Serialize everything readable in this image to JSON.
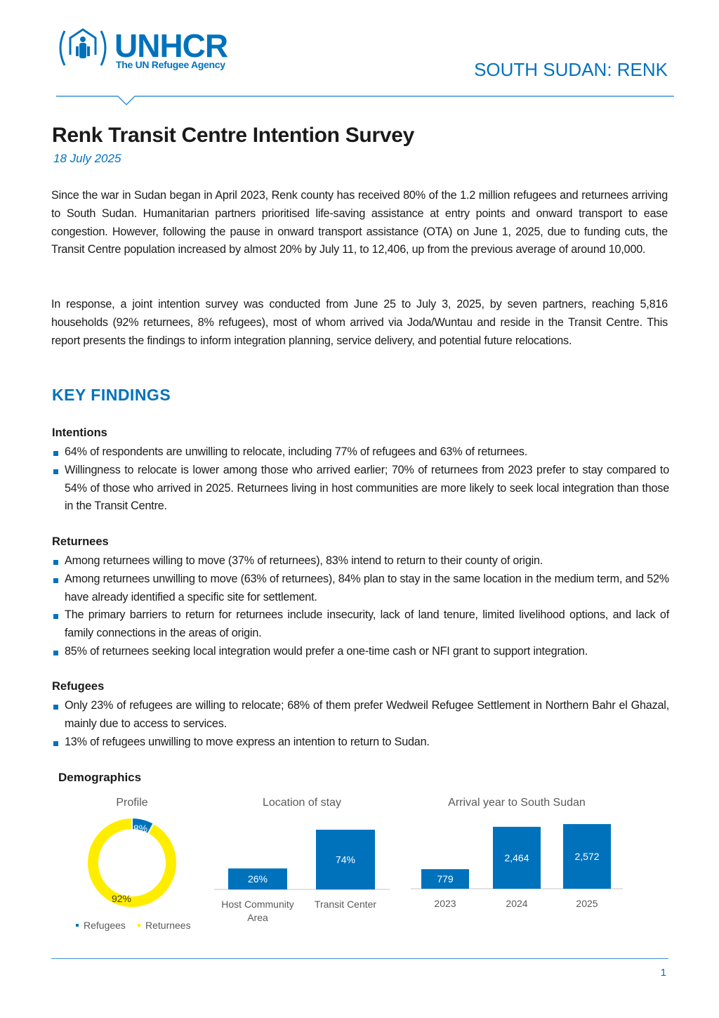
{
  "header": {
    "logo_name": "UNHCR",
    "logo_tagline": "The UN Refugee Agency",
    "country": "SOUTH SUDAN: RENK"
  },
  "title": "Renk Transit Centre Intention Survey",
  "date": "18 July 2025",
  "intro": [
    "Since the war in Sudan began in April 2023, Renk county has received 80% of the 1.2 million refugees and returnees arriving to South Sudan. Humanitarian partners prioritised life-saving assistance at entry points and onward transport to ease congestion. However, following the pause in onward transport assistance (OTA) on June 1, 2025, due to funding cuts, the Transit Centre population increased by almost 20% by July 11, to 12,406, up from the previous average of around 10,000.",
    "In response, a joint intention survey was conducted from June 25 to July 3, 2025, by seven partners, reaching 5,816 households (92% returnees, 8% refugees), most of whom arrived via Joda/Wuntau and reside in the Transit Centre. This report presents the findings to inform integration planning, service delivery, and potential future relocations."
  ],
  "key_findings": {
    "heading": "KEY FINDINGS",
    "sections": [
      {
        "title": "Intentions",
        "bullets": [
          "64% of respondents are unwilling to relocate, including 77% of refugees and 63% of returnees.",
          "Willingness to relocate is lower among those who arrived earlier; 70% of returnees from 2023 prefer to stay compared to 54% of those who arrived in 2025. Returnees living in host communities are more likely to seek local integration than those in the Transit Centre."
        ]
      },
      {
        "title": "Returnees",
        "bullets": [
          "Among returnees willing to move (37% of returnees), 83% intend to return to their county of origin.",
          "Among returnees unwilling to move (63% of returnees), 84% plan to stay in the same location in the medium term, and 52% have already identified a specific site for settlement.",
          "The primary barriers to return for returnees include insecurity, lack of land tenure, limited livelihood options, and lack of family connections in the areas of origin.",
          "85% of returnees seeking local integration would prefer a one-time cash or NFI grant to support integration."
        ]
      },
      {
        "title": "Refugees",
        "bullets": [
          "Only 23% of refugees are willing to relocate; 68% of them prefer Wedweil Refugee Settlement in Northern Bahr el Ghazal, mainly due to access to services.",
          "13% of refugees unwilling to move express an intention to return to Sudan."
        ]
      }
    ]
  },
  "demographics_title": "Demographics",
  "chart_data": [
    {
      "type": "pie",
      "donut": true,
      "title": "Profile",
      "categories": [
        "Refugees",
        "Returnees"
      ],
      "values": [
        8,
        92
      ],
      "labels": [
        "8%",
        "92%"
      ],
      "colors": [
        "#0072bc",
        "#ffed00"
      ],
      "legend": "bottom"
    },
    {
      "type": "bar",
      "title": "Location of stay",
      "categories": [
        "Host Community Area",
        "Transit Center"
      ],
      "values": [
        26,
        74
      ],
      "labels": [
        "26%",
        "74%"
      ],
      "color": "#0072bc"
    },
    {
      "type": "bar",
      "title": "Arrival year to South Sudan",
      "categories": [
        "2023",
        "2024",
        "2025"
      ],
      "values": [
        779,
        2464,
        2572
      ],
      "labels": [
        "779",
        "2,464",
        "2,572"
      ],
      "color": "#0072bc"
    }
  ],
  "footer": {
    "page_number": "1"
  },
  "colors": {
    "accent": "#0072bc",
    "returnees": "#ffed00"
  }
}
